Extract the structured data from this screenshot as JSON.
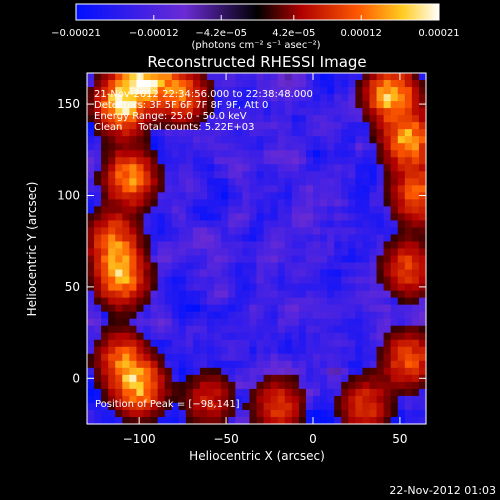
{
  "chart_data": {
    "type": "heatmap",
    "title": "Reconstructed RHESSI Image",
    "xlabel": "Heliocentric X (arcsec)",
    "ylabel": "Heliocentric Y (arcsec)",
    "xlim": [
      -130,
      65
    ],
    "ylim": [
      -25,
      167
    ],
    "x_ticks": [
      -100,
      -50,
      0,
      50
    ],
    "x_tick_labels": [
      "−100",
      "−50",
      "0",
      "50"
    ],
    "y_ticks": [
      0,
      50,
      100,
      150
    ],
    "y_tick_labels": [
      "0",
      "50",
      "100",
      "150"
    ],
    "colorbar": {
      "range": [
        -0.00021,
        0.00021
      ],
      "ticks": [
        -0.00021,
        -0.00012,
        -4.2e-05,
        4.2e-05,
        0.00012,
        0.00021
      ],
      "tick_labels": [
        "−0.00021",
        "−0.00012",
        "−4.2e−05",
        "4.2e−05",
        "0.00012",
        "0.00021"
      ],
      "unit_label": "(photons cm⁻² s⁻¹ asec⁻²)",
      "colors": [
        "#0010ff",
        "#6a2bd4",
        "#000000",
        "#b00000",
        "#ff5a00",
        "#ffcc20",
        "#ffffff"
      ]
    },
    "annotations": {
      "time_range": "21‑Nov‑2012 22:34:56.000 to 22:38:48.000",
      "detectors": "Detectors: 3F 5F 6F 7F 8F 9F, Att 0",
      "energy_range": "Energy Range: 25.0 ‑ 50.0 keV",
      "clean": "Clean     Total counts: 5.22E+03",
      "peak": "Position of Peak = [−98,141]"
    },
    "hot_regions": [
      {
        "x": -110,
        "y": 150,
        "level": 1.0
      },
      {
        "x": -95,
        "y": 165,
        "level": 0.85
      },
      {
        "x": -75,
        "y": 155,
        "level": 0.6
      },
      {
        "x": -105,
        "y": 110,
        "level": 0.7
      },
      {
        "x": -110,
        "y": 55,
        "level": 0.75
      },
      {
        "x": -115,
        "y": 75,
        "level": 0.6
      },
      {
        "x": -100,
        "y": -5,
        "level": 0.75
      },
      {
        "x": -110,
        "y": 10,
        "level": 0.55
      },
      {
        "x": 45,
        "y": 155,
        "level": 0.85
      },
      {
        "x": 55,
        "y": 130,
        "level": 0.75
      },
      {
        "x": 60,
        "y": 100,
        "level": 0.6
      },
      {
        "x": 55,
        "y": 60,
        "level": 0.5
      },
      {
        "x": 55,
        "y": 10,
        "level": 0.55
      },
      {
        "x": 30,
        "y": -15,
        "level": 0.45
      },
      {
        "x": -20,
        "y": -15,
        "level": 0.45
      },
      {
        "x": -60,
        "y": -12,
        "level": 0.35
      }
    ],
    "grid": false,
    "legend": "none"
  },
  "timestamp": "22‑Nov‑2012 01:03"
}
